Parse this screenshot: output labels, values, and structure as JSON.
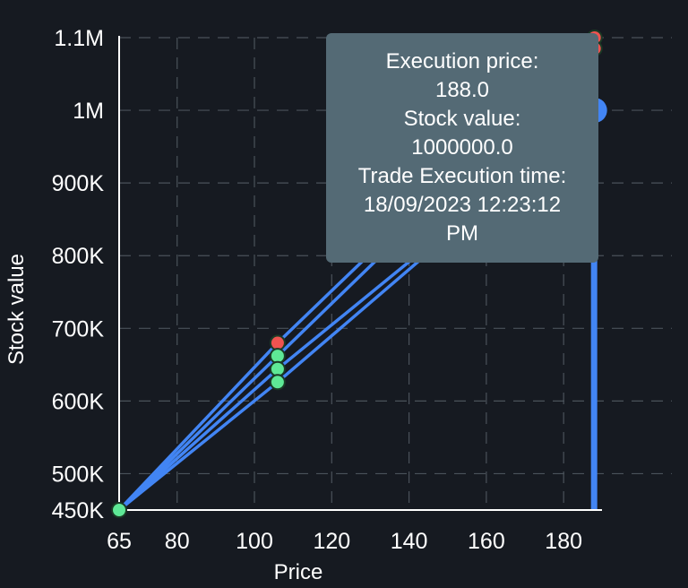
{
  "chart_data": {
    "type": "line",
    "xlabel": "Price",
    "ylabel": "Stock value",
    "xlim": [
      65,
      189
    ],
    "ylim": [
      450000,
      1100000
    ],
    "x_ticks": [
      {
        "value": 65,
        "label": "65"
      },
      {
        "value": 80,
        "label": "80"
      },
      {
        "value": 100,
        "label": "100"
      },
      {
        "value": 120,
        "label": "120"
      },
      {
        "value": 140,
        "label": "140"
      },
      {
        "value": 160,
        "label": "160"
      },
      {
        "value": 180,
        "label": "180"
      }
    ],
    "y_ticks": [
      {
        "value": 450000,
        "label": "450K"
      },
      {
        "value": 500000,
        "label": "500K"
      },
      {
        "value": 600000,
        "label": "600K"
      },
      {
        "value": 700000,
        "label": "700K"
      },
      {
        "value": 800000,
        "label": "800K"
      },
      {
        "value": 900000,
        "label": "900K"
      },
      {
        "value": 1000000,
        "label": "1M"
      },
      {
        "value": 1100000,
        "label": "1.1M"
      }
    ],
    "grid": true,
    "line_color": "#4285f4",
    "series": [
      {
        "values": [
          [
            65,
            450000
          ],
          [
            106,
            680000
          ],
          [
            188,
            1100000
          ]
        ]
      },
      {
        "values": [
          [
            65,
            450000
          ],
          [
            106,
            662000
          ],
          [
            188,
            1085000
          ]
        ]
      },
      {
        "values": [
          [
            65,
            450000
          ],
          [
            106,
            644000
          ],
          [
            188,
            1000000
          ]
        ]
      },
      {
        "values": [
          [
            65,
            450000
          ],
          [
            106,
            626000
          ],
          [
            188,
            1000000
          ]
        ]
      }
    ],
    "points": [
      {
        "x": 65,
        "y": 450000,
        "color": "#5ee896"
      },
      {
        "x": 106,
        "y": 680000,
        "color": "#ef5350"
      },
      {
        "x": 106,
        "y": 662000,
        "color": "#5ee896"
      },
      {
        "x": 106,
        "y": 644000,
        "color": "#5ee896"
      },
      {
        "x": 106,
        "y": 626000,
        "color": "#5ee896"
      },
      {
        "x": 188,
        "y": 1100000,
        "color": "#ef5350"
      },
      {
        "x": 188,
        "y": 1085000,
        "color": "#ef5350"
      }
    ],
    "highlight": {
      "x": 188,
      "y": 1000000,
      "color": "#4285f4"
    },
    "vertical_bar": {
      "x": 188,
      "from": 450000,
      "to": 1000000,
      "color": "#4285f4"
    }
  },
  "tooltip": {
    "price_label": "Execution price:",
    "price_value": "188.0",
    "value_label": "Stock value:",
    "value_value": "1000000.0",
    "time_label": "Trade Execution time:",
    "time_value": "18/09/2023 12:23:12",
    "time_suffix": "PM"
  }
}
